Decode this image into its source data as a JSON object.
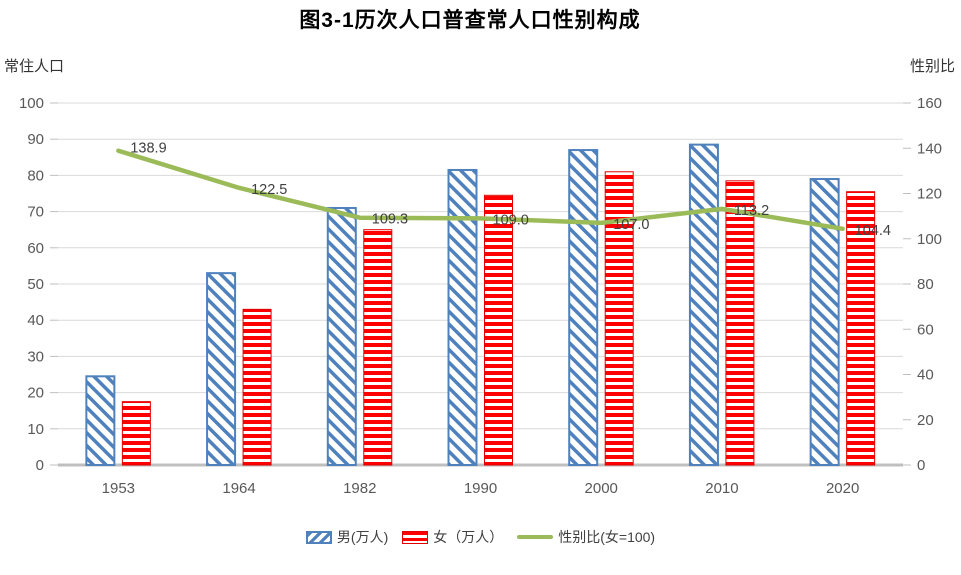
{
  "title": "图3-1历次人口普查常人口性别构成",
  "colors": {
    "male_bar": "#4F81BD",
    "female_bar": "#FF0000",
    "female_bar_dark": "#E00000",
    "ratio_line": "#9BBB59",
    "gridline": "#D9D9D9",
    "axis_line": "#BFBFBF",
    "tick_label": "#595959",
    "x_label": "#595959",
    "data_label": "#404040",
    "title": "#000000"
  },
  "chart_data": {
    "type": "combo-bar-line",
    "title": "图3-1历次人口普查常人口性别构成",
    "categories": [
      "1953",
      "1964",
      "1982",
      "1990",
      "2000",
      "2010",
      "2020"
    ],
    "series": [
      {
        "name": "男(万人)",
        "type": "bar",
        "axis": "left",
        "pattern": "diagonal-hatch",
        "color": "#4F81BD",
        "values": [
          24.5,
          53,
          71,
          81.5,
          87,
          88.5,
          79
        ]
      },
      {
        "name": "女（万人）",
        "type": "bar",
        "axis": "left",
        "pattern": "horizontal-stripes",
        "color": "#FF0000",
        "values": [
          17.5,
          43,
          65,
          74.5,
          81,
          78.5,
          75.5
        ]
      },
      {
        "name": "性别比(女=100)",
        "type": "line",
        "axis": "right",
        "color": "#9BBB59",
        "values": [
          138.9,
          122.5,
          109.3,
          109.0,
          107.0,
          113.2,
          104.4
        ],
        "labels": [
          "138.9",
          "122.5",
          "109.3",
          "109.0",
          "107.0",
          "113.2",
          "104.4"
        ]
      }
    ],
    "left_axis": {
      "label": "常住人口",
      "min": 0,
      "max": 100,
      "tick_step": 10,
      "ticks": [
        0,
        10,
        20,
        30,
        40,
        50,
        60,
        70,
        80,
        90,
        100
      ]
    },
    "right_axis": {
      "label": "性别比",
      "min": 0,
      "max": 160,
      "tick_step": 20,
      "ticks": [
        0,
        20,
        40,
        60,
        80,
        100,
        120,
        140,
        160
      ]
    },
    "grid": true,
    "legend_position": "bottom"
  },
  "legend": {
    "items": [
      {
        "label": "男(万人)"
      },
      {
        "label": "女（万人）"
      },
      {
        "label": "性别比(女=100)"
      }
    ]
  }
}
